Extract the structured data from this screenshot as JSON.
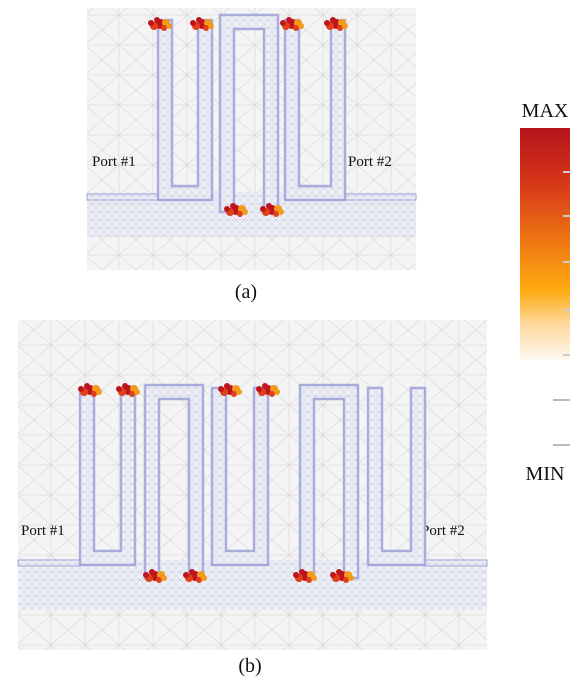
{
  "panel_a": {
    "port_left": "Port #1",
    "port_right": "Port #2",
    "caption": "(a)"
  },
  "panel_b": {
    "port_left": "Port #1",
    "port_right": "Port #2",
    "caption": "(b)"
  },
  "colorbar": {
    "max_label": "MAX",
    "min_label": "MIN"
  }
}
